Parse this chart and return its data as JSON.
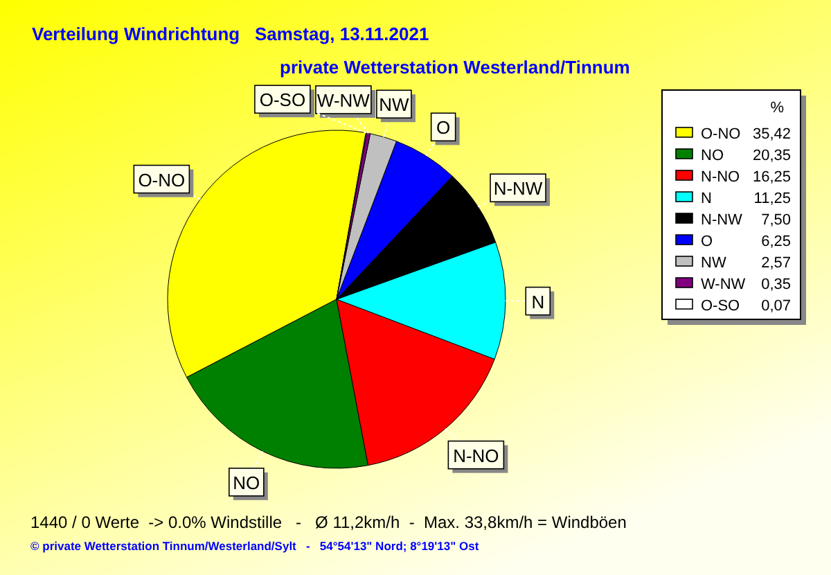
{
  "chart_data": {
    "type": "pie",
    "title": "Verteilung Windrichtung   Samstag, 13.11.2021",
    "subtitle": "private Wetterstation Westerland/Tinnum",
    "categories": [
      "O-NO",
      "NO",
      "N-NO",
      "N",
      "N-NW",
      "O",
      "NW",
      "W-NW",
      "O-SO"
    ],
    "values": [
      35.42,
      20.35,
      16.25,
      11.25,
      7.5,
      6.25,
      2.57,
      0.35,
      0.07
    ],
    "colors": [
      "#ffff00",
      "#008000",
      "#ff0000",
      "#00ffff",
      "#000000",
      "#0000ff",
      "#c0c0c0",
      "#800080",
      "#ffffff"
    ],
    "legend": "right",
    "legend_title": "%",
    "value_labels": [
      "35,42",
      "20,35",
      "16,25",
      "11,25",
      "7,50",
      "6,25",
      "2,57",
      "0,35",
      "0,07"
    ],
    "annotations": [
      "1440 / 0 Werte  -> 0.0% Windstille   -   Ø 11,2km/h  -  Max. 33,8km/h = Windböen",
      "© private Wetterstation Tinnum/Westerland/Sylt   -   54°54'13\" Nord; 8°19'13\" Ost"
    ]
  }
}
